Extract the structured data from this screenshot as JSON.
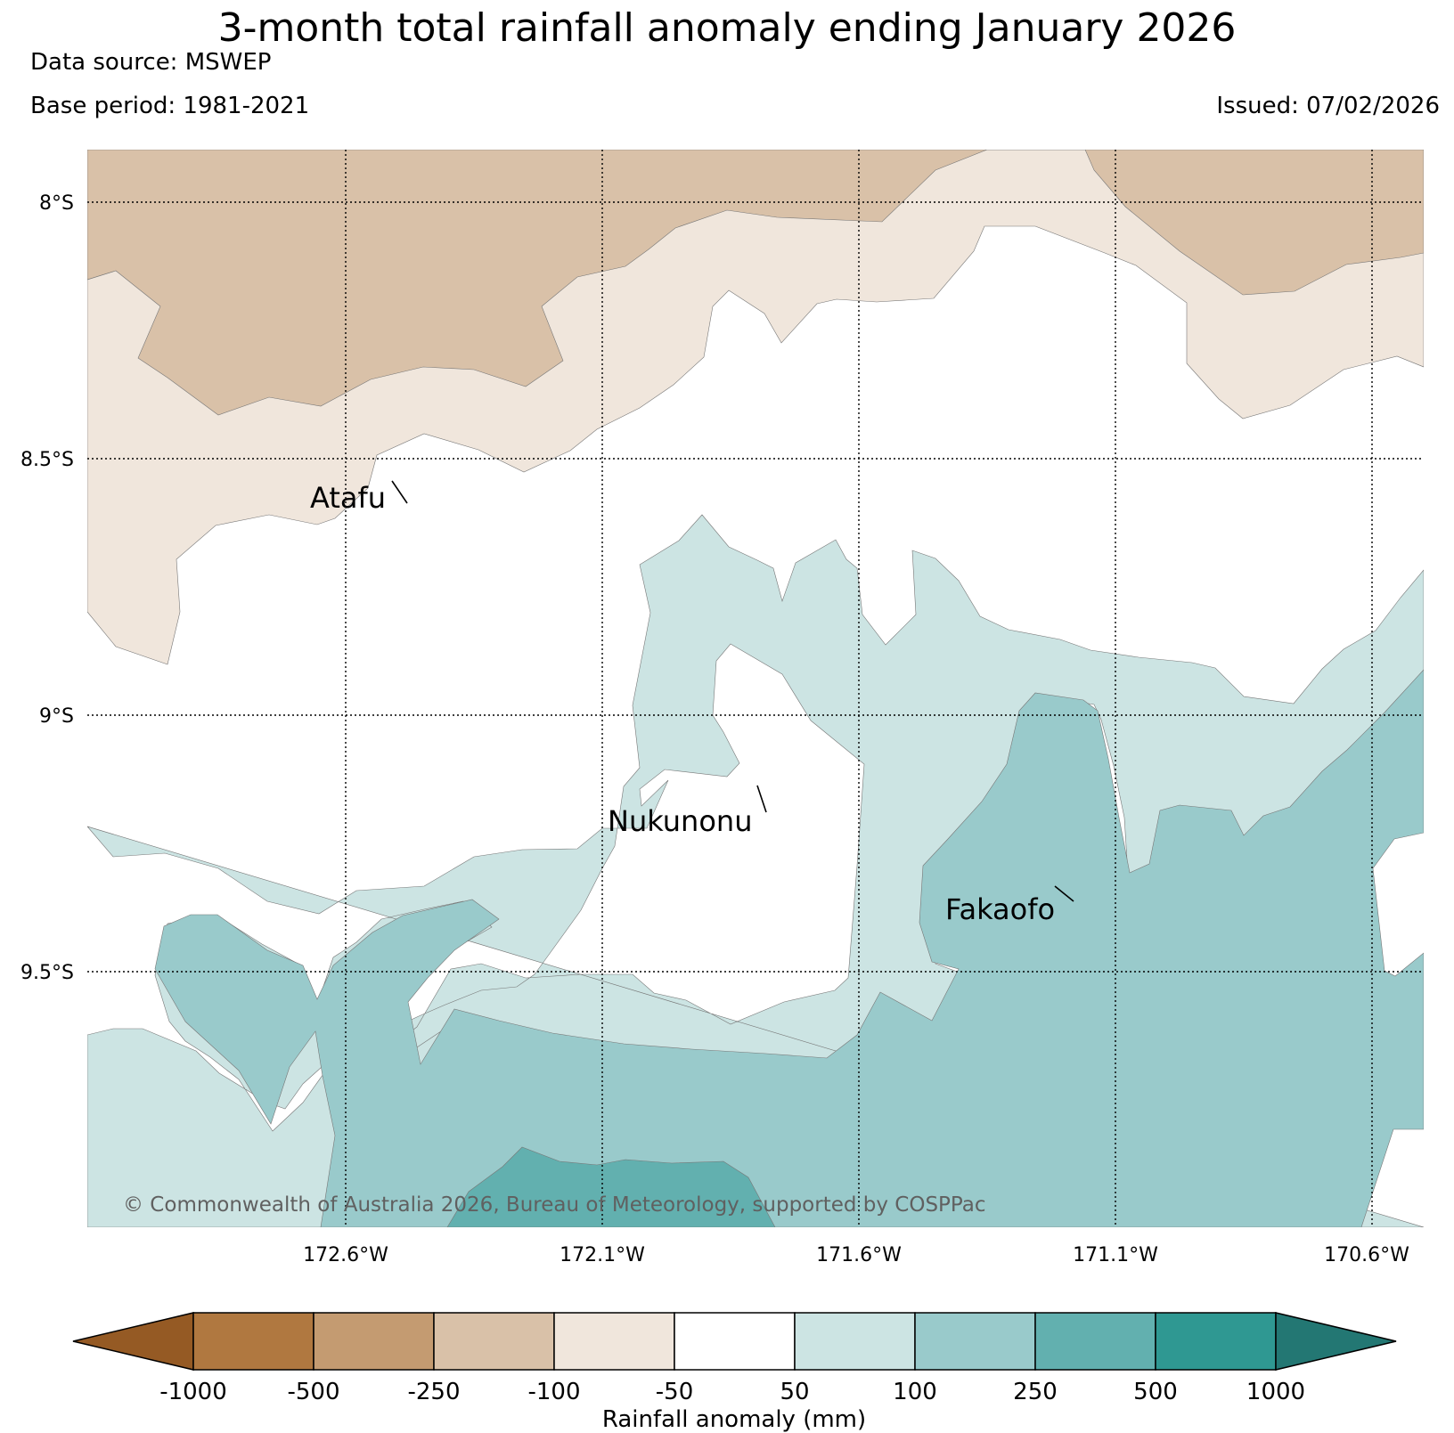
{
  "title": "3-month total rainfall anomaly ending January 2026",
  "data_source": "Data source: MSWEP",
  "base_period": "Base period: 1981-2021",
  "issued": "Issued: 07/02/2026",
  "copyright": "© Commonwealth of Australia 2026, Bureau of Meteorology, supported by COSPPac",
  "map": {
    "lat_labels": [
      "8°S",
      "8.5°S",
      "9°S",
      "9.5°S"
    ],
    "lon_labels": [
      "172.6°W",
      "172.1°W",
      "171.6°W",
      "171.1°W",
      "170.6°W"
    ],
    "places": [
      {
        "name": "Atafu"
      },
      {
        "name": "Nukunonu"
      },
      {
        "name": "Fakaofo"
      }
    ]
  },
  "colors": {
    "below_-1000": "#955a24",
    "-1000_-500": "#b07840",
    "-500_-250": "#c49b71",
    "-250_-100": "#d9c1a8",
    "-100_-50": "#f0e6dc",
    "-50_50": "#ffffff",
    "50_100": "#cce4e3",
    "100_250": "#99cacb",
    "250_500": "#62b0af",
    "500_1000": "#2f9892",
    "above_1000": "#237773"
  },
  "colorbar": {
    "label": "Rainfall anomaly (mm)",
    "ticks": [
      "-1000",
      "-500",
      "-250",
      "-100",
      "-50",
      "50",
      "100",
      "250",
      "500",
      "1000"
    ]
  }
}
